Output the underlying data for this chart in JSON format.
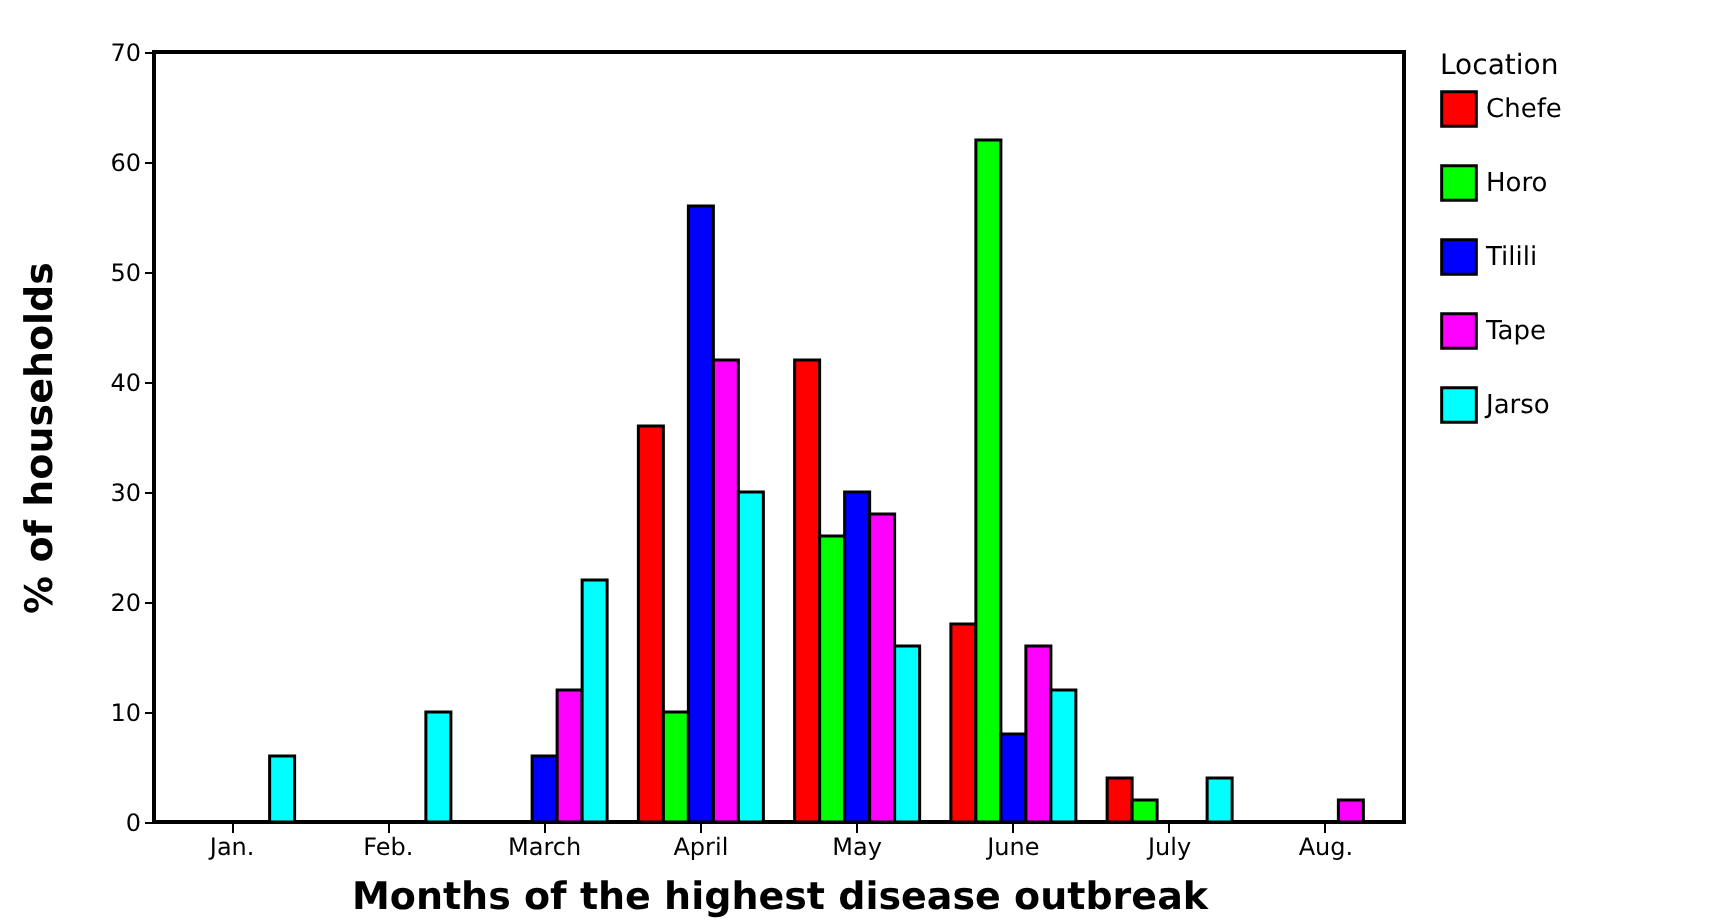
{
  "chart_data": {
    "type": "bar",
    "xlabel": "Months of the highest disease outbreak",
    "ylabel": "% of households",
    "legend_title": "Location",
    "categories": [
      "Jan.",
      "Feb.",
      "March",
      "April",
      "May",
      "June",
      "July",
      "Aug."
    ],
    "series": [
      {
        "name": "Chefe",
        "color": "#ff0000",
        "values": [
          0,
          0,
          0,
          36,
          42,
          18,
          4,
          0
        ]
      },
      {
        "name": "Horo",
        "color": "#00ff00",
        "values": [
          0,
          0,
          0,
          10,
          26,
          62,
          2,
          0
        ]
      },
      {
        "name": "Tilili",
        "color": "#0000ff",
        "values": [
          0,
          0,
          6,
          56,
          30,
          8,
          0,
          0
        ]
      },
      {
        "name": "Tape",
        "color": "#ff00ff",
        "values": [
          0,
          0,
          12,
          42,
          28,
          16,
          0,
          2
        ]
      },
      {
        "name": "Jarso",
        "color": "#00ffff",
        "values": [
          6,
          10,
          22,
          30,
          16,
          12,
          4,
          0
        ]
      }
    ],
    "ylim": [
      0,
      70
    ],
    "yticks": [
      0,
      10,
      20,
      30,
      40,
      50,
      60,
      70
    ],
    "grid": false,
    "legend": "right"
  }
}
